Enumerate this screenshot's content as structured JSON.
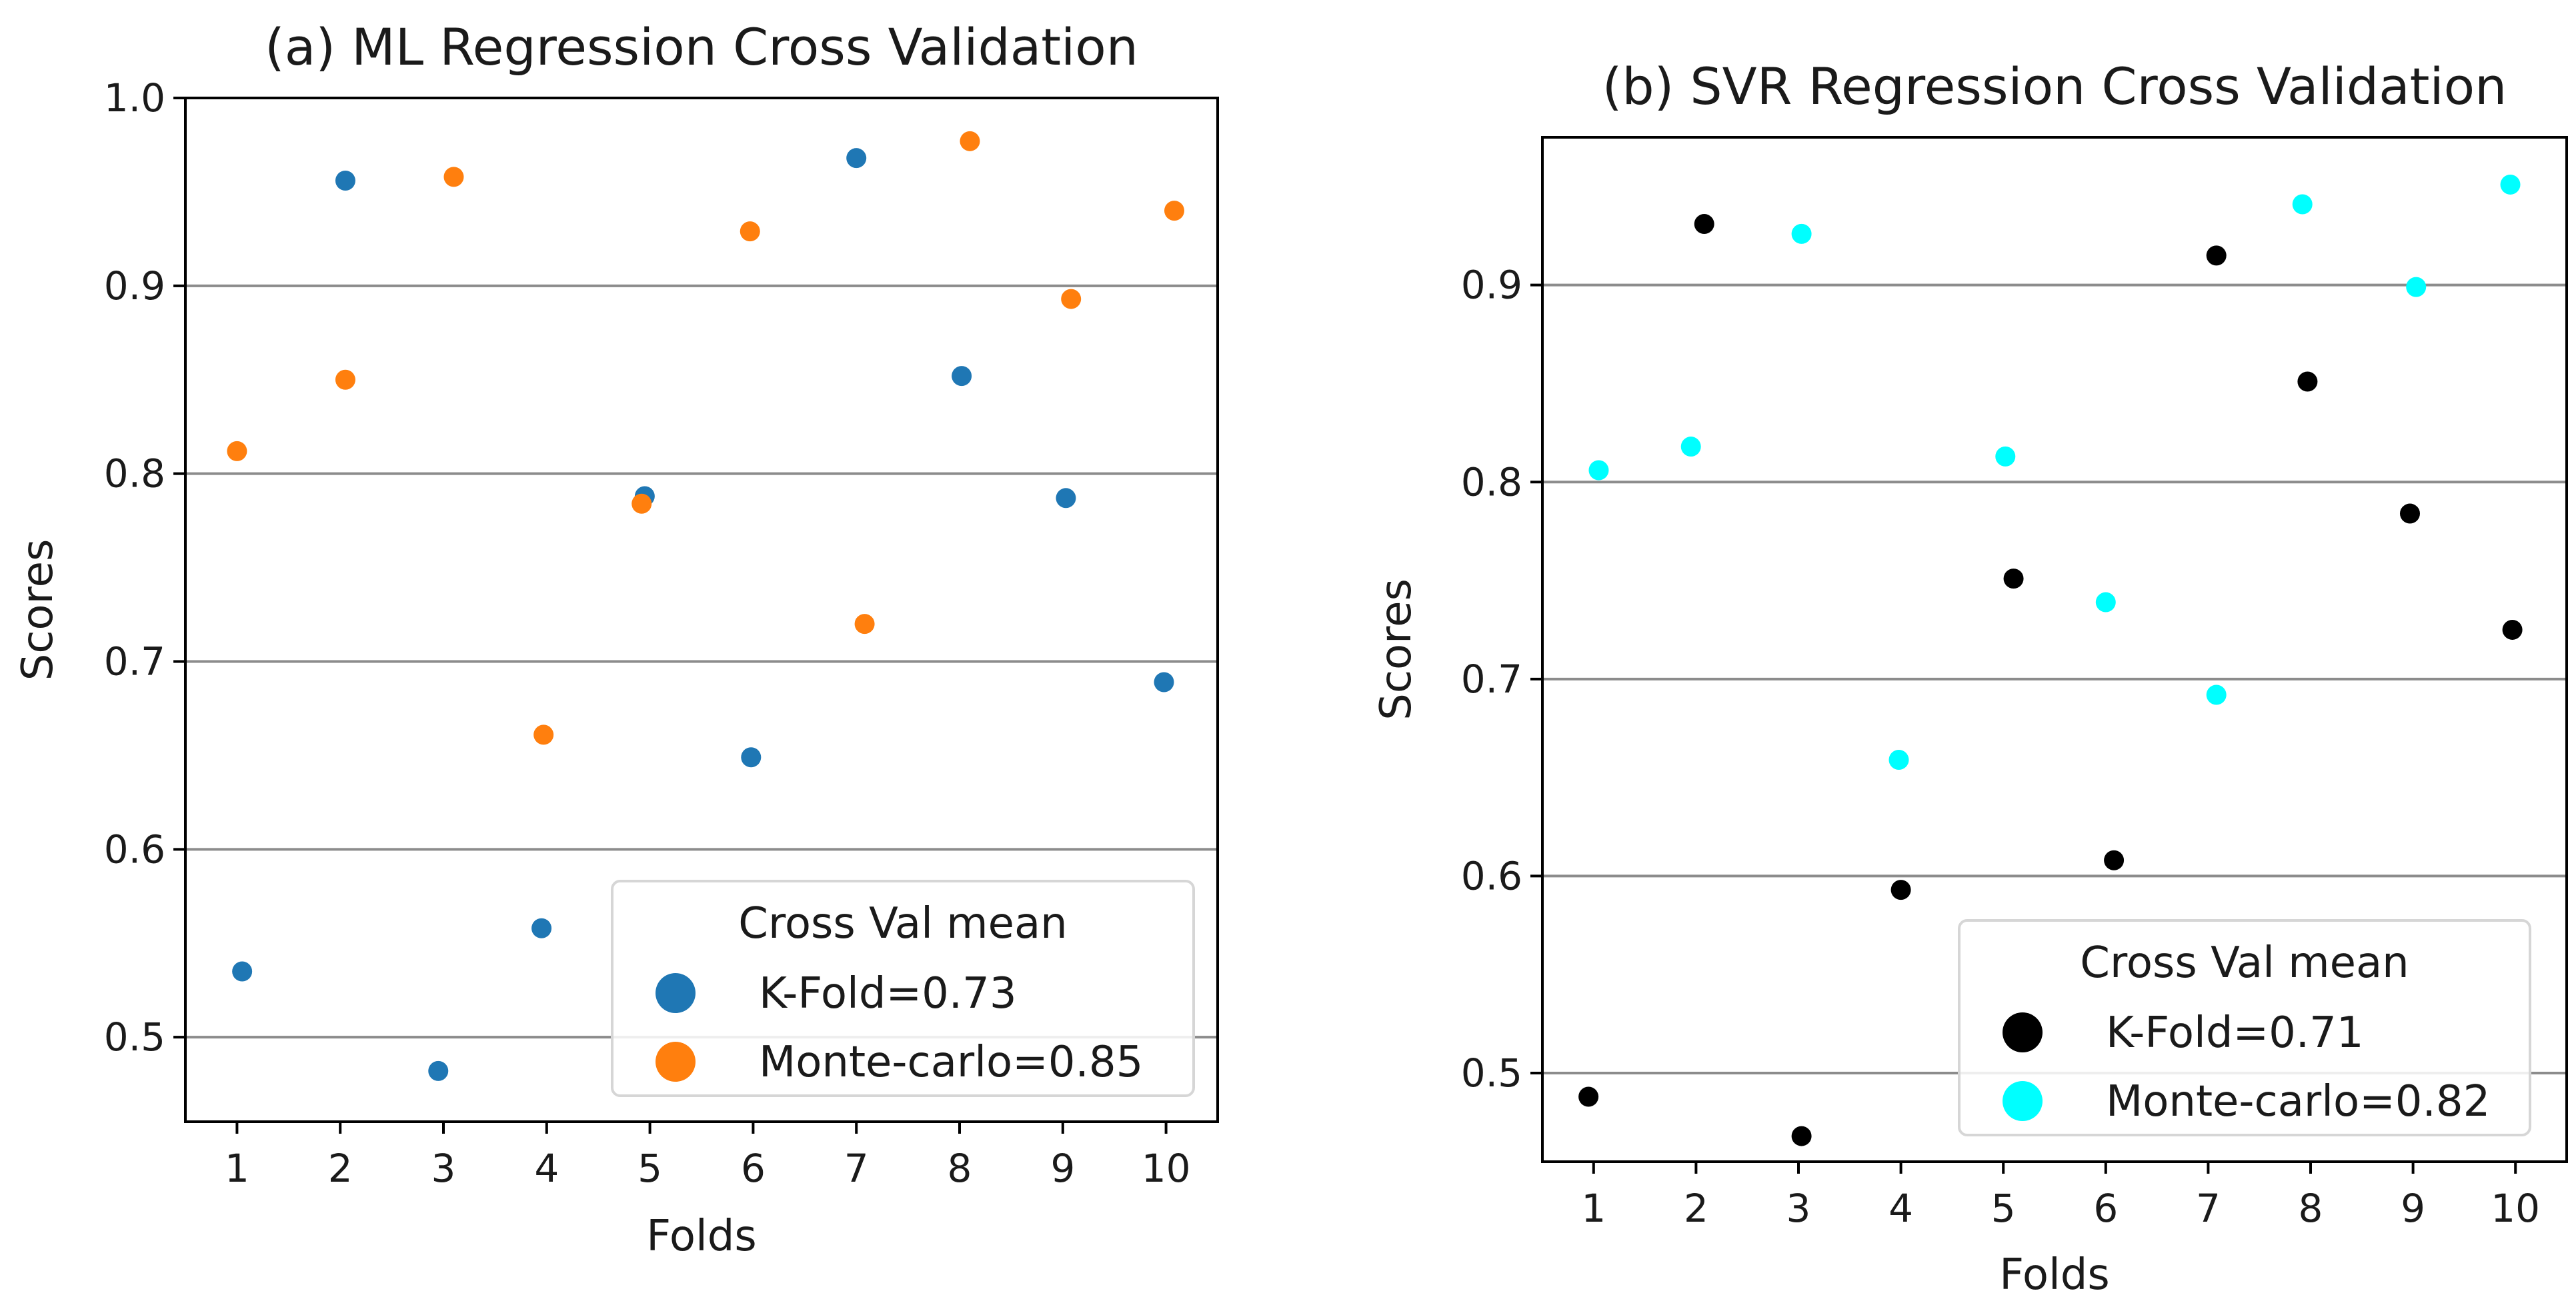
{
  "chart_data": [
    {
      "type": "scatter",
      "title": "(a) ML Regression Cross Validation",
      "xlabel": "Folds",
      "ylabel": "Scores",
      "xlim": [
        0.5,
        10.5
      ],
      "ylim": [
        0.455,
        1.0
      ],
      "xticks": [
        "1",
        "2",
        "3",
        "4",
        "5",
        "6",
        "7",
        "8",
        "9",
        "10"
      ],
      "yticks": [
        "0.5",
        "0.6",
        "0.7",
        "0.8",
        "0.9",
        "1.0"
      ],
      "grid": "horizontal",
      "legend_title": "Cross Val mean",
      "legend_position": "lower-right",
      "series": [
        {
          "name": "K-Fold=0.73",
          "color": "#1f77b4",
          "x": [
            1.05,
            2.05,
            2.95,
            3.95,
            4.95,
            5.98,
            7.0,
            8.02,
            9.03,
            9.98
          ],
          "y": [
            0.535,
            0.956,
            0.482,
            0.558,
            0.788,
            0.649,
            0.968,
            0.852,
            0.787,
            0.689
          ]
        },
        {
          "name": "Monte-carlo=0.85",
          "color": "#ff7f0e",
          "x": [
            1.0,
            2.05,
            3.1,
            3.97,
            4.92,
            5.97,
            7.08,
            8.1,
            9.08,
            10.08
          ],
          "y": [
            0.812,
            0.85,
            0.958,
            0.661,
            0.784,
            0.929,
            0.72,
            0.977,
            0.893,
            0.94
          ]
        }
      ]
    },
    {
      "type": "scatter",
      "title": "(b) SVR Regression Cross Validation",
      "xlabel": "Folds",
      "ylabel": "Scores",
      "xlim": [
        0.5,
        10.5
      ],
      "ylim": [
        0.455,
        0.975
      ],
      "xticks": [
        "1",
        "2",
        "3",
        "4",
        "5",
        "6",
        "7",
        "8",
        "9",
        "10"
      ],
      "yticks": [
        "0.5",
        "0.6",
        "0.7",
        "0.8",
        "0.9"
      ],
      "grid": "horizontal",
      "legend_title": "Cross Val mean",
      "legend_position": "lower-right",
      "series": [
        {
          "name": "K-Fold=0.71",
          "color": "#000000",
          "x": [
            0.95,
            2.08,
            3.03,
            4.0,
            5.1,
            6.08,
            7.08,
            7.97,
            8.97,
            9.97
          ],
          "y": [
            0.488,
            0.931,
            0.468,
            0.593,
            0.751,
            0.608,
            0.915,
            0.851,
            0.784,
            0.725
          ]
        },
        {
          "name": "Monte-carlo=0.82",
          "color": "#00ffff",
          "x": [
            1.05,
            1.95,
            3.03,
            3.98,
            5.02,
            6.0,
            7.08,
            7.92,
            9.03,
            9.95
          ],
          "y": [
            0.806,
            0.818,
            0.926,
            0.659,
            0.813,
            0.739,
            0.692,
            0.941,
            0.899,
            0.951
          ]
        }
      ]
    }
  ]
}
